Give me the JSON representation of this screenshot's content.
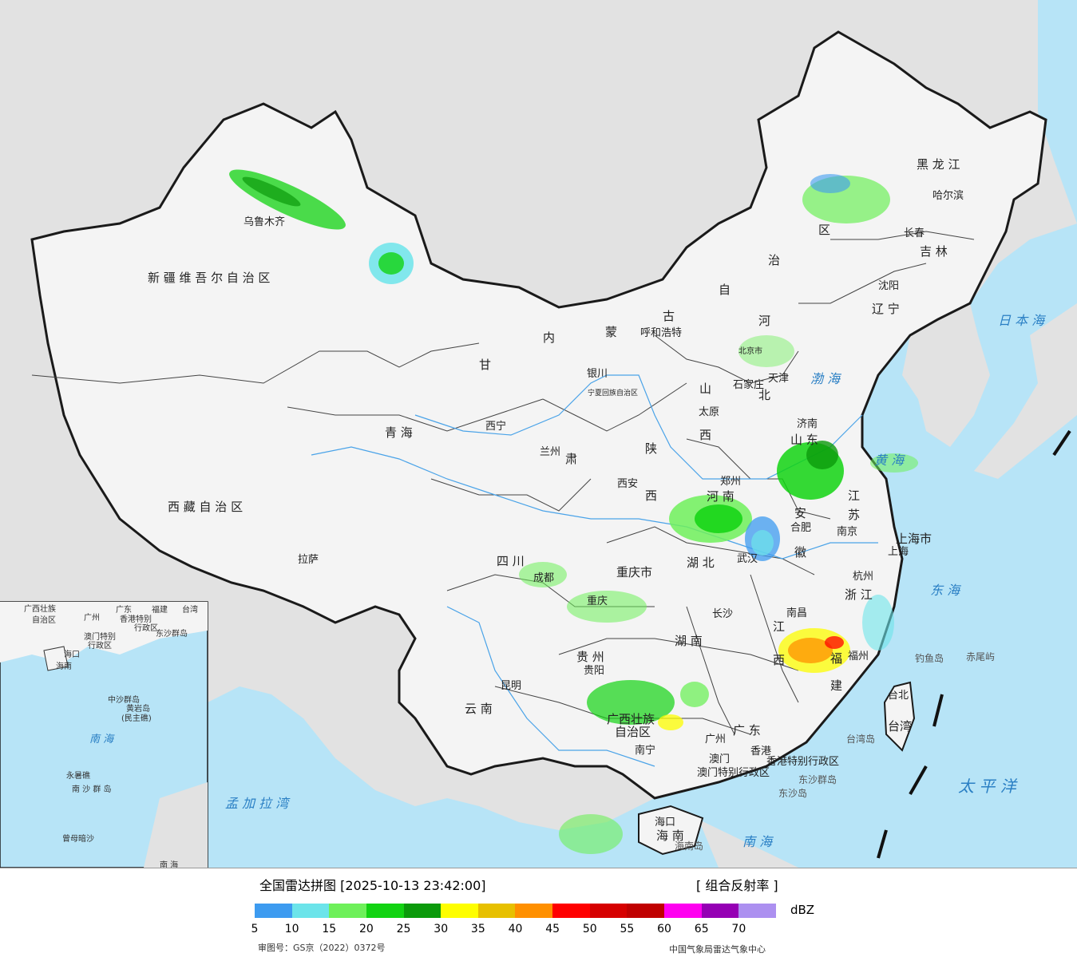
{
  "map": {
    "province_labels": [
      "新 疆 维 吾 尔 自 治 区",
      "西 藏 自 治 区",
      "青  海",
      "甘",
      "肃",
      "四  川",
      "云  南",
      "内",
      "蒙",
      "古",
      "自",
      "治",
      "区",
      "黑 龙 江",
      "吉  林",
      "辽 宁",
      "河",
      "北",
      "山",
      "西",
      "陕",
      "西",
      "河  南",
      "山  东",
      "湖  北",
      "湖  南",
      "安",
      "徽",
      "江",
      "苏",
      "浙 江",
      "江",
      "西",
      "福",
      "建",
      "广 东",
      "广西壮族",
      "自治区",
      "贵  州",
      "重庆市",
      "宁夏回族自治区",
      "上海市",
      "海  南",
      "台湾"
    ],
    "cities": [
      "乌鲁木齐",
      "拉萨",
      "西宁",
      "兰州",
      "银川",
      "呼和浩特",
      "北京市",
      "天津",
      "石家庄",
      "太原",
      "济南",
      "郑州",
      "西安",
      "成都",
      "重庆",
      "贵阳",
      "昆明",
      "南宁",
      "广州",
      "澳门",
      "香港",
      "长沙",
      "武汉",
      "合肥",
      "南京",
      "上海",
      "杭州",
      "南昌",
      "福州",
      "台北",
      "海口",
      "沈阳",
      "长春",
      "哈尔滨"
    ],
    "sea_labels": [
      "日 本 海",
      "渤 海",
      "黄 海",
      "东 海",
      "南  海",
      "太 平 洋",
      "孟 加 拉 湾",
      "南 海"
    ],
    "island_labels": [
      "钓鱼岛",
      "赤尾屿",
      "台湾岛",
      "东沙群岛",
      "东沙岛",
      "海南岛"
    ],
    "sar_labels": [
      "香港特别行政区",
      "澳门特别行政区"
    ],
    "inset_labels": [
      "广西壮族",
      "自治区",
      "广州",
      "广东",
      "福建",
      "台湾",
      "香港特别",
      "行政区",
      "澳门特别",
      "行政区",
      "东沙群岛",
      "海口",
      "海南",
      "中沙群岛",
      "黄岩岛",
      "(民主礁)",
      "南  海",
      "永暑礁",
      "南 沙 群 岛",
      "曾母暗沙"
    ],
    "colors": {
      "land": "#f4f4f4",
      "outside": "#e2e2e2",
      "sea": "#b7e4f7",
      "border": "#1a1a1a"
    }
  },
  "legend": {
    "title": "全国雷达拼图 [2025-10-13 23:42:00]",
    "product": "[ 组合反射率 ]",
    "unit": "dBZ",
    "approval": "审图号：GS京（2022）0372号",
    "agency": "中国气象局雷达气象中心",
    "ticks": [
      "5",
      "10",
      "15",
      "20",
      "25",
      "30",
      "35",
      "40",
      "45",
      "50",
      "55",
      "60",
      "65",
      "70"
    ],
    "colors": [
      "#3d9bf0",
      "#6ce4ea",
      "#6ef05a",
      "#12d312",
      "#0b9a0b",
      "#fefe00",
      "#e7c000",
      "#ff9000",
      "#ff0000",
      "#d60000",
      "#c00000",
      "#ff00f0",
      "#9500b4",
      "#ac90f0"
    ]
  }
}
